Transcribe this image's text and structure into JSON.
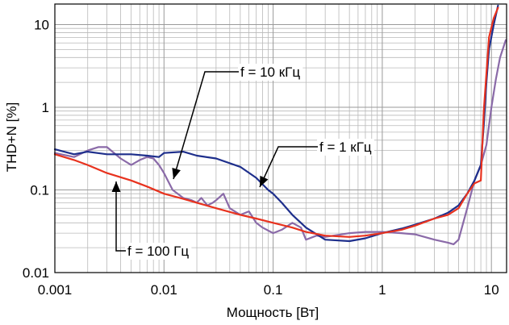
{
  "chart_data": {
    "type": "line",
    "xlabel": "Мощность [Вт]",
    "ylabel": "THD+N [%]",
    "x_scale": "log",
    "y_scale": "log",
    "xlim": [
      0.001,
      15
    ],
    "ylim": [
      0.01,
      20
    ],
    "grid": true,
    "x_ticks": [
      {
        "value": 0.001,
        "label": "0.001"
      },
      {
        "value": 0.01,
        "label": "0.01"
      },
      {
        "value": 0.1,
        "label": "0.1"
      },
      {
        "value": 1,
        "label": "1"
      },
      {
        "value": 10,
        "label": "10"
      }
    ],
    "y_ticks": [
      {
        "value": 0.01,
        "label": "0.01"
      },
      {
        "value": 0.1,
        "label": "0.1"
      },
      {
        "value": 1,
        "label": "1"
      },
      {
        "value": 10,
        "label": "10"
      }
    ],
    "annotations": [
      {
        "text": "f = 10 кГц",
        "series": "f = 10 кГц"
      },
      {
        "text": "f = 1 кГц",
        "series": "f = 1 кГц"
      },
      {
        "text": "f = 100 Гц",
        "series": "f = 100 Гц"
      }
    ],
    "series": [
      {
        "name": "f = 100 Гц",
        "color": "#e8321e",
        "points": [
          [
            0.001,
            0.27
          ],
          [
            0.0015,
            0.23
          ],
          [
            0.002,
            0.2
          ],
          [
            0.003,
            0.16
          ],
          [
            0.005,
            0.13
          ],
          [
            0.007,
            0.11
          ],
          [
            0.01,
            0.09
          ],
          [
            0.015,
            0.078
          ],
          [
            0.02,
            0.07
          ],
          [
            0.03,
            0.06
          ],
          [
            0.05,
            0.05
          ],
          [
            0.07,
            0.045
          ],
          [
            0.1,
            0.04
          ],
          [
            0.15,
            0.035
          ],
          [
            0.2,
            0.031
          ],
          [
            0.3,
            0.028
          ],
          [
            0.5,
            0.027
          ],
          [
            0.7,
            0.028
          ],
          [
            1,
            0.03
          ],
          [
            1.5,
            0.033
          ],
          [
            2,
            0.037
          ],
          [
            3,
            0.045
          ],
          [
            4,
            0.05
          ],
          [
            5,
            0.06
          ],
          [
            6,
            0.09
          ],
          [
            7,
            0.12
          ],
          [
            8,
            0.13
          ],
          [
            8.5,
            0.9
          ],
          [
            9.5,
            7
          ],
          [
            10.5,
            12
          ],
          [
            11.5,
            16
          ]
        ]
      },
      {
        "name": "f = 1 кГц",
        "color": "#1e2f8c",
        "points": [
          [
            0.001,
            0.31
          ],
          [
            0.0015,
            0.27
          ],
          [
            0.002,
            0.29
          ],
          [
            0.003,
            0.27
          ],
          [
            0.005,
            0.27
          ],
          [
            0.007,
            0.26
          ],
          [
            0.009,
            0.25
          ],
          [
            0.01,
            0.28
          ],
          [
            0.015,
            0.29
          ],
          [
            0.02,
            0.26
          ],
          [
            0.03,
            0.24
          ],
          [
            0.05,
            0.19
          ],
          [
            0.07,
            0.14
          ],
          [
            0.09,
            0.1
          ],
          [
            0.1,
            0.09
          ],
          [
            0.12,
            0.07
          ],
          [
            0.15,
            0.05
          ],
          [
            0.2,
            0.035
          ],
          [
            0.3,
            0.025
          ],
          [
            0.5,
            0.024
          ],
          [
            0.7,
            0.026
          ],
          [
            1,
            0.03
          ],
          [
            1.5,
            0.034
          ],
          [
            2,
            0.038
          ],
          [
            3,
            0.045
          ],
          [
            4,
            0.053
          ],
          [
            5,
            0.065
          ],
          [
            6,
            0.09
          ],
          [
            7,
            0.13
          ],
          [
            8,
            0.2
          ],
          [
            8.5,
            0.6
          ],
          [
            9,
            2
          ],
          [
            9.5,
            5
          ],
          [
            10.5,
            10
          ],
          [
            11.5,
            17
          ]
        ]
      },
      {
        "name": "f = 10 кГц",
        "color": "#8a6aa8",
        "points": [
          [
            0.001,
            0.28
          ],
          [
            0.0015,
            0.25
          ],
          [
            0.002,
            0.3
          ],
          [
            0.0025,
            0.33
          ],
          [
            0.003,
            0.33
          ],
          [
            0.004,
            0.24
          ],
          [
            0.005,
            0.2
          ],
          [
            0.006,
            0.23
          ],
          [
            0.007,
            0.25
          ],
          [
            0.008,
            0.24
          ],
          [
            0.009,
            0.2
          ],
          [
            0.01,
            0.16
          ],
          [
            0.012,
            0.1
          ],
          [
            0.015,
            0.08
          ],
          [
            0.018,
            0.075
          ],
          [
            0.02,
            0.07
          ],
          [
            0.022,
            0.08
          ],
          [
            0.025,
            0.065
          ],
          [
            0.028,
            0.07
          ],
          [
            0.03,
            0.075
          ],
          [
            0.035,
            0.09
          ],
          [
            0.04,
            0.06
          ],
          [
            0.05,
            0.05
          ],
          [
            0.06,
            0.055
          ],
          [
            0.07,
            0.04
          ],
          [
            0.08,
            0.035
          ],
          [
            0.1,
            0.03
          ],
          [
            0.12,
            0.033
          ],
          [
            0.15,
            0.04
          ],
          [
            0.18,
            0.035
          ],
          [
            0.2,
            0.025
          ],
          [
            0.25,
            0.028
          ],
          [
            0.3,
            0.027
          ],
          [
            0.5,
            0.03
          ],
          [
            0.7,
            0.031
          ],
          [
            1,
            0.031
          ],
          [
            1.5,
            0.03
          ],
          [
            2,
            0.029
          ],
          [
            3,
            0.025
          ],
          [
            4,
            0.023
          ],
          [
            4.5,
            0.022
          ],
          [
            5,
            0.025
          ],
          [
            6,
            0.06
          ],
          [
            7,
            0.13
          ],
          [
            8,
            0.2
          ],
          [
            9,
            0.35
          ],
          [
            10,
            1
          ],
          [
            11,
            2.2
          ],
          [
            12,
            4
          ],
          [
            14,
            6.5
          ]
        ]
      }
    ]
  }
}
